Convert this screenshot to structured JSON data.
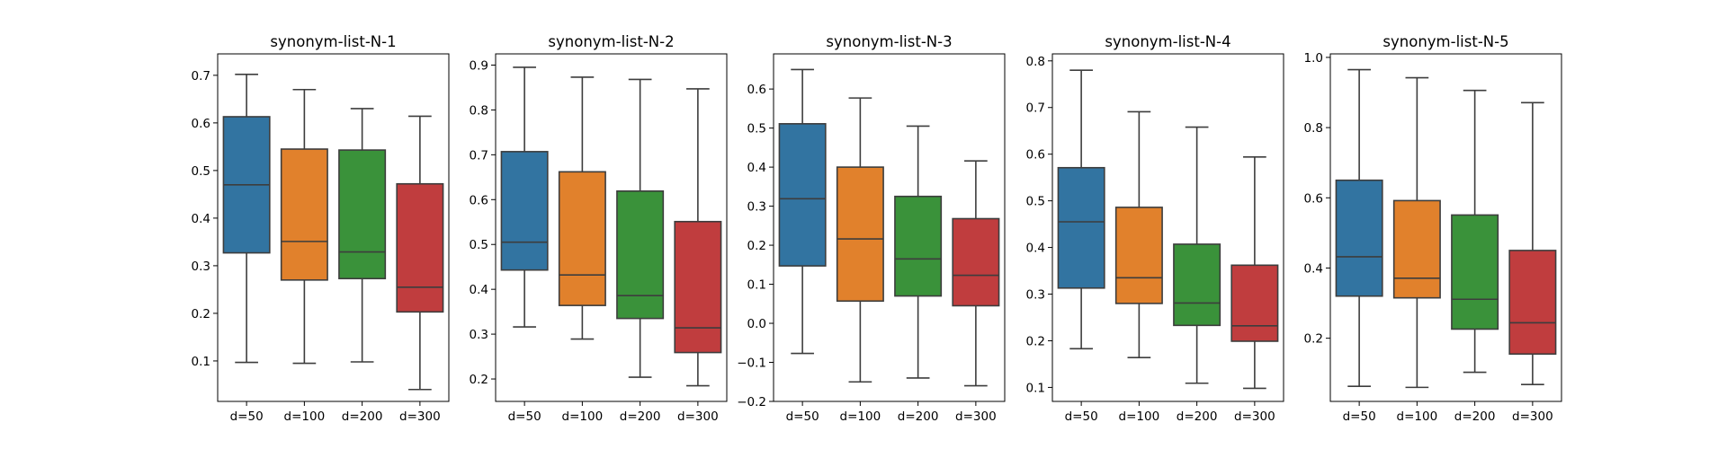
{
  "figure": {
    "palette": [
      "#3274a1",
      "#e1812c",
      "#3a923a",
      "#c03d3e"
    ],
    "median_color": "#3d3d3d",
    "background": "#ffffff"
  },
  "chart_data": [
    {
      "type": "box",
      "title": "synonym-list-N-1",
      "categories": [
        "d=50",
        "d=100",
        "d=200",
        "d=300"
      ],
      "ylim": [
        0.015,
        0.745
      ],
      "yticks": [
        0.1,
        0.2,
        0.3,
        0.4,
        0.5,
        0.6,
        0.7
      ],
      "ytick_labels": [
        "0.1",
        "0.2",
        "0.3",
        "0.4",
        "0.5",
        "0.6",
        "0.7"
      ],
      "series": [
        {
          "whisker_low": 0.097,
          "q1": 0.327,
          "median": 0.47,
          "q3": 0.613,
          "whisker_high": 0.702
        },
        {
          "whisker_low": 0.095,
          "q1": 0.27,
          "median": 0.351,
          "q3": 0.545,
          "whisker_high": 0.67
        },
        {
          "whisker_low": 0.098,
          "q1": 0.273,
          "median": 0.329,
          "q3": 0.543,
          "whisker_high": 0.63
        },
        {
          "whisker_low": 0.04,
          "q1": 0.203,
          "median": 0.255,
          "q3": 0.472,
          "whisker_high": 0.614
        }
      ]
    },
    {
      "type": "box",
      "title": "synonym-list-N-2",
      "categories": [
        "d=50",
        "d=100",
        "d=200",
        "d=300"
      ],
      "ylim": [
        0.15,
        0.925
      ],
      "yticks": [
        0.2,
        0.3,
        0.4,
        0.5,
        0.6,
        0.7,
        0.8,
        0.9
      ],
      "ytick_labels": [
        "0.2",
        "0.3",
        "0.4",
        "0.5",
        "0.6",
        "0.7",
        "0.8",
        "0.9"
      ],
      "series": [
        {
          "whisker_low": 0.316,
          "q1": 0.443,
          "median": 0.505,
          "q3": 0.707,
          "whisker_high": 0.895
        },
        {
          "whisker_low": 0.289,
          "q1": 0.364,
          "median": 0.432,
          "q3": 0.662,
          "whisker_high": 0.873
        },
        {
          "whisker_low": 0.204,
          "q1": 0.335,
          "median": 0.386,
          "q3": 0.619,
          "whisker_high": 0.868
        },
        {
          "whisker_low": 0.185,
          "q1": 0.259,
          "median": 0.314,
          "q3": 0.551,
          "whisker_high": 0.847
        }
      ]
    },
    {
      "type": "box",
      "title": "synonym-list-N-3",
      "categories": [
        "d=50",
        "d=100",
        "d=200",
        "d=300"
      ],
      "ylim": [
        -0.2,
        0.69
      ],
      "yticks": [
        -0.2,
        -0.1,
        0.0,
        0.1,
        0.2,
        0.3,
        0.4,
        0.5,
        0.6
      ],
      "ytick_labels": [
        "−0.2",
        "−0.1",
        "0.0",
        "0.1",
        "0.2",
        "0.3",
        "0.4",
        "0.5",
        "0.6"
      ],
      "series": [
        {
          "whisker_low": -0.077,
          "q1": 0.147,
          "median": 0.319,
          "q3": 0.511,
          "whisker_high": 0.65
        },
        {
          "whisker_low": -0.15,
          "q1": 0.057,
          "median": 0.216,
          "q3": 0.4,
          "whisker_high": 0.577
        },
        {
          "whisker_low": -0.14,
          "q1": 0.07,
          "median": 0.165,
          "q3": 0.325,
          "whisker_high": 0.505
        },
        {
          "whisker_low": -0.16,
          "q1": 0.045,
          "median": 0.123,
          "q3": 0.268,
          "whisker_high": 0.416
        }
      ]
    },
    {
      "type": "box",
      "title": "synonym-list-N-4",
      "categories": [
        "d=50",
        "d=100",
        "d=200",
        "d=300"
      ],
      "ylim": [
        0.07,
        0.815
      ],
      "yticks": [
        0.1,
        0.2,
        0.3,
        0.4,
        0.5,
        0.6,
        0.7,
        0.8
      ],
      "ytick_labels": [
        "0.1",
        "0.2",
        "0.3",
        "0.4",
        "0.5",
        "0.6",
        "0.7",
        "0.8"
      ],
      "series": [
        {
          "whisker_low": 0.183,
          "q1": 0.313,
          "median": 0.455,
          "q3": 0.571,
          "whisker_high": 0.78
        },
        {
          "whisker_low": 0.164,
          "q1": 0.28,
          "median": 0.335,
          "q3": 0.486,
          "whisker_high": 0.691
        },
        {
          "whisker_low": 0.109,
          "q1": 0.233,
          "median": 0.281,
          "q3": 0.407,
          "whisker_high": 0.658
        },
        {
          "whisker_low": 0.098,
          "q1": 0.199,
          "median": 0.232,
          "q3": 0.362,
          "whisker_high": 0.594
        }
      ]
    },
    {
      "type": "box",
      "title": "synonym-list-N-5",
      "categories": [
        "d=50",
        "d=100",
        "d=200",
        "d=300"
      ],
      "ylim": [
        0.02,
        1.01
      ],
      "yticks": [
        0.2,
        0.4,
        0.6,
        0.8,
        1.0
      ],
      "ytick_labels": [
        "0.2",
        "0.4",
        "0.6",
        "0.8",
        "1.0"
      ],
      "series": [
        {
          "whisker_low": 0.063,
          "q1": 0.32,
          "median": 0.432,
          "q3": 0.65,
          "whisker_high": 0.965
        },
        {
          "whisker_low": 0.06,
          "q1": 0.315,
          "median": 0.371,
          "q3": 0.592,
          "whisker_high": 0.942
        },
        {
          "whisker_low": 0.103,
          "q1": 0.226,
          "median": 0.311,
          "q3": 0.551,
          "whisker_high": 0.906
        },
        {
          "whisker_low": 0.068,
          "q1": 0.155,
          "median": 0.244,
          "q3": 0.45,
          "whisker_high": 0.871
        }
      ]
    }
  ]
}
